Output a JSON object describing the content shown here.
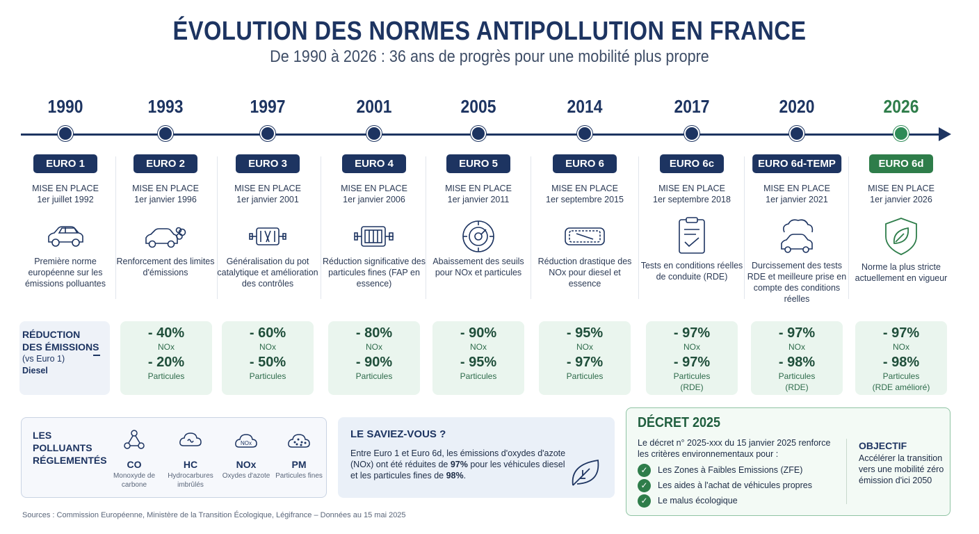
{
  "header": {
    "title": "ÉVOLUTION DES NORMES ANTIPOLLUTION EN FRANCE",
    "subtitle": "De 1990 à 2026 : 36 ans de progrès pour une mobilité plus propre"
  },
  "timeline": [
    {
      "year": "1990",
      "norm": "EURO 1",
      "mise_label": "MISE EN PLACE",
      "date": "1er juillet 1992",
      "icon": "car-icon",
      "desc": "Première norme européenne sur les émissions polluantes"
    },
    {
      "year": "1993",
      "norm": "EURO 2",
      "mise_label": "MISE EN PLACE",
      "date": "1er janvier 1996",
      "icon": "car-exhaust-icon",
      "desc": "Renforcement des limites d'émissions"
    },
    {
      "year": "1997",
      "norm": "EURO 3",
      "mise_label": "MISE EN PLACE",
      "date": "1er janvier 2001",
      "icon": "catalytic-converter-icon",
      "desc": "Généralisation du pot catalytique et amélioration des contrôles"
    },
    {
      "year": "2001",
      "norm": "EURO 4",
      "mise_label": "MISE EN PLACE",
      "date": "1er janvier 2006",
      "icon": "particle-filter-icon",
      "desc": "Réduction significative des particules fines (FAP en essence)"
    },
    {
      "year": "2005",
      "norm": "EURO 5",
      "mise_label": "MISE EN PLACE",
      "date": "1er janvier 2011",
      "icon": "gauge-icon",
      "desc": "Abaissement des seuils pour NOx et particules"
    },
    {
      "year": "2014",
      "norm": "EURO 6",
      "mise_label": "MISE EN PLACE",
      "date": "1er septembre 2015",
      "icon": "filter-icon",
      "desc": "Réduction drastique des NOx pour diesel et essence"
    },
    {
      "year": "2017",
      "norm": "EURO 6c",
      "mise_label": "MISE EN PLACE",
      "date": "1er septembre 2018",
      "icon": "clipboard-check-icon",
      "desc": "Tests en conditions réelles de conduite (RDE)"
    },
    {
      "year": "2020",
      "norm": "EURO 6d-TEMP",
      "mise_label": "MISE EN PLACE",
      "date": "1er janvier 2021",
      "icon": "car-cloud-icon",
      "desc": "Durcissement des tests RDE et meilleure prise en compte des conditions réelles"
    },
    {
      "year": "2026",
      "norm": "EURO 6d",
      "mise_label": "MISE EN PLACE",
      "date": "1er janvier 2026",
      "icon": "leaf-shield-icon",
      "desc": "Norme la plus stricte actuellement en vigueur"
    }
  ],
  "reduction": {
    "label_line1": "RÉDUCTION",
    "label_line2": "DES ÉMISSIONS",
    "label_line3": "(vs Euro 1)",
    "label_line4": "Diesel",
    "stats": [
      {
        "nox": "- 40%",
        "nox_label": "NOx",
        "pm": "- 20%",
        "pm_label": "Particules",
        "note": ""
      },
      {
        "nox": "- 60%",
        "nox_label": "NOx",
        "pm": "- 50%",
        "pm_label": "Particules",
        "note": ""
      },
      {
        "nox": "- 80%",
        "nox_label": "NOx",
        "pm": "- 90%",
        "pm_label": "Particules",
        "note": ""
      },
      {
        "nox": "- 90%",
        "nox_label": "NOx",
        "pm": "- 95%",
        "pm_label": "Particules",
        "note": ""
      },
      {
        "nox": "- 95%",
        "nox_label": "NOx",
        "pm": "- 97%",
        "pm_label": "Particules",
        "note": ""
      },
      {
        "nox": "- 97%",
        "nox_label": "NOx",
        "pm": "- 97%",
        "pm_label": "Particules",
        "note": "(RDE)"
      },
      {
        "nox": "- 97%",
        "nox_label": "NOx",
        "pm": "- 98%",
        "pm_label": "Particules",
        "note": "(RDE)"
      },
      {
        "nox": "- 97%",
        "nox_label": "NOx",
        "pm": "- 98%",
        "pm_label": "Particules",
        "note": "(RDE amélioré)"
      }
    ]
  },
  "pollutants": {
    "title": "LES POLLUANTS RÉGLEMENTÉS",
    "items": [
      {
        "code": "CO",
        "name": "Monoxyde de carbone",
        "icon": "molecule-icon"
      },
      {
        "code": "HC",
        "name": "Hydrocarbures imbrûlés",
        "icon": "cloud-icon"
      },
      {
        "code": "NOx",
        "name": "Oxydes d'azote",
        "icon": "nox-cloud-icon"
      },
      {
        "code": "PM",
        "name": "Particules fines",
        "icon": "particles-icon"
      }
    ]
  },
  "did_you_know": {
    "title": "LE SAVIEZ-VOUS ?",
    "text_a": "Entre Euro 1 et Euro 6d, les émissions d'oxydes d'azote (NOx) ont été réduites de ",
    "nox_value": "97%",
    "text_b": " pour les véhicules diesel et les particules fines de ",
    "pm_value": "98%",
    "text_c": ".",
    "icon": "leaf-icon"
  },
  "decret": {
    "title": "DÉCRET 2025",
    "text": "Le décret n° 2025-xxx du 15 janvier 2025 renforce les critères environnementaux pour :",
    "items": [
      "Les Zones à Faibles Emissions (ZFE)",
      "Les aides à l'achat de véhicules propres",
      "Le malus écologique"
    ],
    "objective_title": "OBJECTIF",
    "objective_text": "Accélérer la transition vers une mobilité zéro émission d'ici 2050"
  },
  "sources": "Sources : Commission Européenne, Ministère de la Transition Écologique, Légifrance – Données au 15 mai 2025",
  "colors": {
    "navy": "#1d3461",
    "green": "#2e7d4a",
    "light_green": "#eaf5ee",
    "light_blue": "#eef2f8"
  }
}
